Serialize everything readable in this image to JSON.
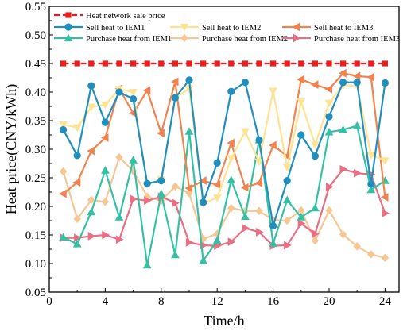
{
  "chart_data": {
    "type": "line",
    "xlabel": "Time/h",
    "ylabel": "Heat price(CNY/kWh)",
    "xlim": [
      0,
      25
    ],
    "ylim": [
      0.05,
      0.55
    ],
    "xticks": [
      0,
      4,
      8,
      12,
      16,
      20,
      24
    ],
    "yticks": [
      0.05,
      0.1,
      0.15,
      0.2,
      0.25,
      0.3,
      0.35,
      0.4,
      0.45,
      0.5,
      0.55
    ],
    "ytick_labels": [
      "0.05",
      "0.10",
      "0.15",
      "0.20",
      "0.25",
      "0.30",
      "0.35",
      "0.40",
      "0.45",
      "0.50",
      "0.55"
    ],
    "grid": false,
    "legend_position": "top",
    "x": [
      1,
      2,
      3,
      4,
      5,
      6,
      7,
      8,
      9,
      10,
      11,
      12,
      13,
      14,
      15,
      16,
      17,
      18,
      19,
      20,
      21,
      22,
      23,
      24
    ],
    "series": [
      {
        "name": "Heat network sale price",
        "color": "#ee1c1c",
        "marker": "square",
        "dashed": true,
        "values": [
          0.45,
          0.45,
          0.45,
          0.45,
          0.45,
          0.45,
          0.45,
          0.45,
          0.45,
          0.45,
          0.45,
          0.45,
          0.45,
          0.45,
          0.45,
          0.45,
          0.45,
          0.45,
          0.45,
          0.45,
          0.45,
          0.45,
          0.45,
          0.45
        ]
      },
      {
        "name": "Sell heat to IEM1",
        "color": "#1f8fbf",
        "marker": "circle",
        "values": [
          0.334,
          0.289,
          0.411,
          0.347,
          0.4,
          0.388,
          0.24,
          0.245,
          0.39,
          0.421,
          0.207,
          0.276,
          0.401,
          0.417,
          0.316,
          0.166,
          0.245,
          0.325,
          0.288,
          0.357,
          0.417,
          0.417,
          0.239,
          0.416
        ]
      },
      {
        "name": "Sell heat to IEM2",
        "color": "#ffe394",
        "marker": "down-triangle",
        "values": [
          0.343,
          0.338,
          0.374,
          0.378,
          0.405,
          0.4,
          0.238,
          0.247,
          0.39,
          0.406,
          0.205,
          0.215,
          0.284,
          0.331,
          0.278,
          0.402,
          0.268,
          0.383,
          0.308,
          0.381,
          0.412,
          0.411,
          0.29,
          0.28
        ]
      },
      {
        "name": "Sell heat to IEM3",
        "color": "#f0834f",
        "marker": "left-triangle",
        "values": [
          0.222,
          0.242,
          0.297,
          0.32,
          0.406,
          0.363,
          0.403,
          0.328,
          0.418,
          0.232,
          0.245,
          0.238,
          0.311,
          0.233,
          0.241,
          0.307,
          0.288,
          0.422,
          0.413,
          0.405,
          0.433,
          0.428,
          0.426,
          0.216
        ]
      },
      {
        "name": "Purchase heat from IEM1",
        "color": "#36c0a3",
        "marker": "up-triangle",
        "values": [
          0.146,
          0.134,
          0.19,
          0.263,
          0.181,
          0.281,
          0.097,
          0.222,
          0.115,
          0.331,
          0.105,
          0.14,
          0.246,
          0.182,
          0.316,
          0.135,
          0.211,
          0.181,
          0.197,
          0.33,
          0.334,
          0.341,
          0.229,
          0.245
        ]
      },
      {
        "name": "Purchase heat from IEM2",
        "color": "#f6c795",
        "marker": "diamond",
        "values": [
          0.261,
          0.178,
          0.211,
          0.208,
          0.286,
          0.262,
          0.217,
          0.21,
          0.235,
          0.223,
          0.143,
          0.152,
          0.197,
          0.192,
          0.192,
          0.176,
          0.175,
          0.193,
          0.14,
          0.193,
          0.151,
          0.13,
          0.116,
          0.11
        ]
      },
      {
        "name": "Purchase heat from IEM3",
        "color": "#ea6e84",
        "marker": "right-triangle",
        "values": [
          0.145,
          0.145,
          0.148,
          0.15,
          0.142,
          0.213,
          0.21,
          0.217,
          0.206,
          0.137,
          0.132,
          0.131,
          0.138,
          0.162,
          0.155,
          0.131,
          0.132,
          0.17,
          0.152,
          0.234,
          0.265,
          0.258,
          0.256,
          0.188
        ]
      }
    ]
  }
}
